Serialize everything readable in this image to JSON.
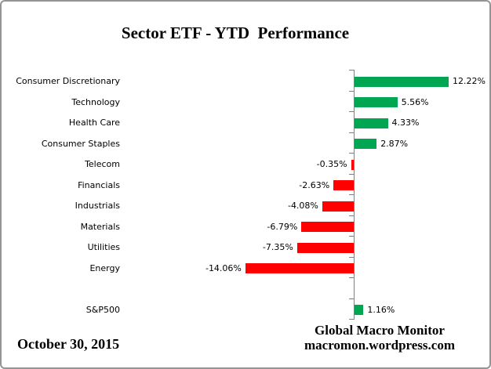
{
  "title": "Sector ETF - YTD  Performance",
  "footer": {
    "date": "October 30, 2015",
    "credit_line1": "Global Macro Monitor",
    "credit_line2": "macromon.wordpress.com"
  },
  "chart_data": {
    "type": "bar",
    "orientation": "horizontal",
    "title": "Sector ETF - YTD  Performance",
    "categories": [
      "Consumer Discretionary",
      "Technology",
      "Health Care",
      "Consumer Staples",
      "Telecom",
      "Financials",
      "Industrials",
      "Materials",
      "Utilities",
      "Energy",
      "S&P500"
    ],
    "values": [
      12.22,
      5.56,
      4.33,
      2.87,
      -0.35,
      -2.63,
      -4.08,
      -6.79,
      -7.35,
      -14.06,
      1.16
    ],
    "value_labels": [
      "12.22%",
      "5.56%",
      "4.33%",
      "2.87%",
      "-0.35%",
      "-2.63%",
      "-4.08%",
      "-6.79%",
      "-7.35%",
      "-14.06%",
      "1.16%"
    ],
    "spacer_before_index": 10,
    "positive_color": "#00A651",
    "negative_color": "#FF0000",
    "axis_color": "#808080",
    "xlabel": "",
    "ylabel": "",
    "xlim": [
      -30,
      17
    ],
    "grid": false,
    "legend": false,
    "value_label_position": "outside-end"
  }
}
